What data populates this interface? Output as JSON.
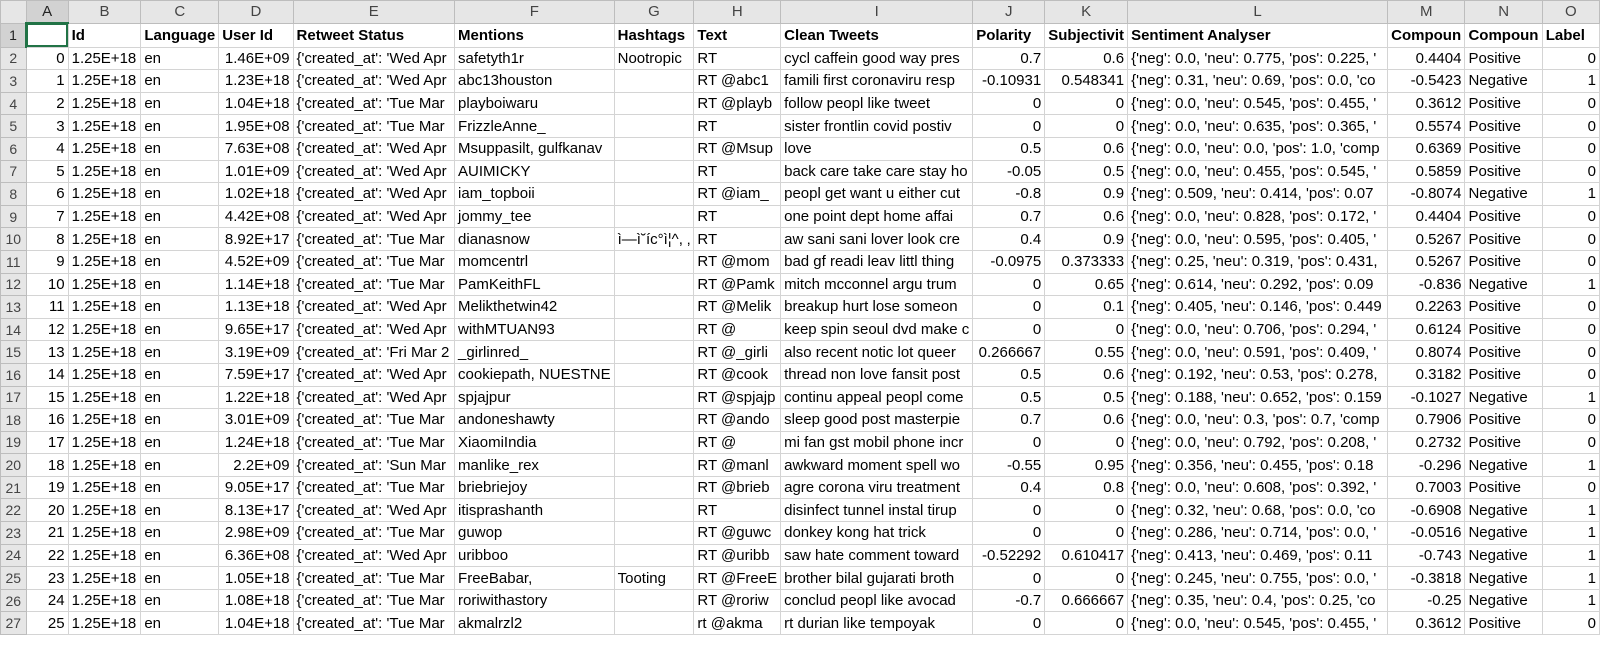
{
  "sheet": {
    "columns": [
      "A",
      "B",
      "C",
      "D",
      "E",
      "F",
      "G",
      "H",
      "I",
      "J",
      "K",
      "L",
      "M",
      "N",
      "O"
    ],
    "selected_cell": "A1",
    "headers": [
      "",
      "Id",
      "Language",
      "User Id",
      "Retweet Status",
      "Mentions",
      "Hashtags",
      "Text",
      "Clean Tweets",
      "Polarity",
      "Subjectivit",
      "Sentiment Analyser",
      "Compoun",
      "Compoun",
      "Label"
    ],
    "rows": [
      [
        "0",
        "1.25E+18",
        "en",
        "1.46E+09",
        "{'created_at': 'Wed Apr",
        "safetyth1r",
        "Nootropic",
        "RT",
        "cycl caffein good way pres",
        "0.7",
        "0.6",
        "{'neg': 0.0, 'neu': 0.775, 'pos': 0.225, '",
        "0.4404",
        "Positive",
        "0"
      ],
      [
        "1",
        "1.25E+18",
        "en",
        "1.23E+18",
        "{'created_at': 'Wed Apr",
        "abc13houston",
        "",
        "RT @abc1",
        "famili first coronaviru resp",
        "-0.10931",
        "0.548341",
        "{'neg': 0.31, 'neu': 0.69, 'pos': 0.0, 'co",
        "-0.5423",
        "Negative",
        "1"
      ],
      [
        "2",
        "1.25E+18",
        "en",
        "1.04E+18",
        "{'created_at': 'Tue Mar",
        "playboiwaru",
        "",
        "RT @playb",
        "follow peopl like tweet",
        "0",
        "0",
        "{'neg': 0.0, 'neu': 0.545, 'pos': 0.455, '",
        "0.3612",
        "Positive",
        "0"
      ],
      [
        "3",
        "1.25E+18",
        "en",
        "1.95E+08",
        "{'created_at': 'Tue Mar",
        "FrizzleAnne_",
        "",
        "RT",
        "sister frontlin covid postiv",
        "0",
        "0",
        "{'neg': 0.0, 'neu': 0.635, 'pos': 0.365, '",
        "0.5574",
        "Positive",
        "0"
      ],
      [
        "4",
        "1.25E+18",
        "en",
        "7.63E+08",
        "{'created_at': 'Wed Apr",
        "Msuppasilt, gulfkanav",
        "",
        "RT @Msup",
        "love",
        "0.5",
        "0.6",
        "{'neg': 0.0, 'neu': 0.0, 'pos': 1.0, 'comp",
        "0.6369",
        "Positive",
        "0"
      ],
      [
        "5",
        "1.25E+18",
        "en",
        "1.01E+09",
        "{'created_at': 'Wed Apr",
        "AUIMICKY",
        "",
        "RT",
        "back care take care stay ho",
        "-0.05",
        "0.5",
        "{'neg': 0.0, 'neu': 0.455, 'pos': 0.545, '",
        "0.5859",
        "Positive",
        "0"
      ],
      [
        "6",
        "1.25E+18",
        "en",
        "1.02E+18",
        "{'created_at': 'Wed Apr",
        "iam_topboii",
        "",
        "RT @iam_",
        "peopl get want u either cut",
        "-0.8",
        "0.9",
        "{'neg': 0.509, 'neu': 0.414, 'pos': 0.07",
        "-0.8074",
        "Negative",
        "1"
      ],
      [
        "7",
        "1.25E+18",
        "en",
        "4.42E+08",
        "{'created_at': 'Wed Apr",
        "jommy_tee",
        "",
        "RT",
        "one point dept home affai",
        "0.7",
        "0.6",
        "{'neg': 0.0, 'neu': 0.828, 'pos': 0.172, '",
        "0.4404",
        "Positive",
        "0"
      ],
      [
        "8",
        "1.25E+18",
        "en",
        "8.92E+17",
        "{'created_at': 'Tue Mar",
        "dianasnow",
        "ì—ì˘íc°ì¦^, ‚",
        "RT",
        "aw sani sani lover look cre",
        "0.4",
        "0.9",
        "{'neg': 0.0, 'neu': 0.595, 'pos': 0.405, '",
        "0.5267",
        "Positive",
        "0"
      ],
      [
        "9",
        "1.25E+18",
        "en",
        "4.52E+09",
        "{'created_at': 'Tue Mar",
        "momcentrl",
        "",
        "RT @mom",
        "bad gf readi leav littl thing",
        "-0.0975",
        "0.373333",
        "{'neg': 0.25, 'neu': 0.319, 'pos': 0.431,",
        "0.5267",
        "Positive",
        "0"
      ],
      [
        "10",
        "1.25E+18",
        "en",
        "1.14E+18",
        "{'created_at': 'Tue Mar",
        "PamKeithFL",
        "",
        "RT @Pamk",
        "mitch mcconnel argu trum",
        "0",
        "0.65",
        "{'neg': 0.614, 'neu': 0.292, 'pos': 0.09",
        "-0.836",
        "Negative",
        "1"
      ],
      [
        "11",
        "1.25E+18",
        "en",
        "1.13E+18",
        "{'created_at': 'Wed Apr",
        "Melikthetwin42",
        "",
        "RT @Melik",
        "breakup hurt lose someon",
        "0",
        "0.1",
        "{'neg': 0.405, 'neu': 0.146, 'pos': 0.449",
        "0.2263",
        "Positive",
        "0"
      ],
      [
        "12",
        "1.25E+18",
        "en",
        "9.65E+17",
        "{'created_at': 'Wed Apr",
        "withMTUAN93",
        "",
        "RT @",
        "keep spin seoul dvd make c",
        "0",
        "0",
        "{'neg': 0.0, 'neu': 0.706, 'pos': 0.294, '",
        "0.6124",
        "Positive",
        "0"
      ],
      [
        "13",
        "1.25E+18",
        "en",
        "3.19E+09",
        "{'created_at': 'Fri Mar 2",
        "_girlinred_",
        "",
        "RT @_girli",
        "also recent notic lot queer",
        "0.266667",
        "0.55",
        "{'neg': 0.0, 'neu': 0.591, 'pos': 0.409, '",
        "0.8074",
        "Positive",
        "0"
      ],
      [
        "14",
        "1.25E+18",
        "en",
        "7.59E+17",
        "{'created_at': 'Wed Apr",
        "cookiepath, NUESTNE",
        "",
        "RT @cook",
        "thread non love fansit post",
        "0.5",
        "0.6",
        "{'neg': 0.192, 'neu': 0.53, 'pos': 0.278,",
        "0.3182",
        "Positive",
        "0"
      ],
      [
        "15",
        "1.25E+18",
        "en",
        "1.22E+18",
        "{'created_at': 'Wed Apr",
        "spjajpur",
        "",
        "RT @spjajp",
        "continu appeal peopl come",
        "0.5",
        "0.5",
        "{'neg': 0.188, 'neu': 0.652, 'pos': 0.159",
        "-0.1027",
        "Negative",
        "1"
      ],
      [
        "16",
        "1.25E+18",
        "en",
        "3.01E+09",
        "{'created_at': 'Tue Mar",
        "andoneshawty",
        "",
        "RT @ando",
        "sleep good post masterpie",
        "0.7",
        "0.6",
        "{'neg': 0.0, 'neu': 0.3, 'pos': 0.7, 'comp",
        "0.7906",
        "Positive",
        "0"
      ],
      [
        "17",
        "1.25E+18",
        "en",
        "1.24E+18",
        "{'created_at': 'Tue Mar",
        "XiaomiIndia",
        "",
        "RT @",
        "mi fan gst mobil phone incr",
        "0",
        "0",
        "{'neg': 0.0, 'neu': 0.792, 'pos': 0.208, '",
        "0.2732",
        "Positive",
        "0"
      ],
      [
        "18",
        "1.25E+18",
        "en",
        "2.2E+09",
        "{'created_at': 'Sun Mar",
        "manlike_rex",
        "",
        "RT @manl",
        "awkward moment spell wo",
        "-0.55",
        "0.95",
        "{'neg': 0.356, 'neu': 0.455, 'pos': 0.18",
        "-0.296",
        "Negative",
        "1"
      ],
      [
        "19",
        "1.25E+18",
        "en",
        "9.05E+17",
        "{'created_at': 'Tue Mar",
        "briebriejoy",
        "",
        "RT @brieb",
        "agre corona viru treatment",
        "0.4",
        "0.8",
        "{'neg': 0.0, 'neu': 0.608, 'pos': 0.392, '",
        "0.7003",
        "Positive",
        "0"
      ],
      [
        "20",
        "1.25E+18",
        "en",
        "8.13E+17",
        "{'created_at': 'Wed Apr",
        "itisprashanth",
        "",
        "RT",
        "disinfect tunnel instal tirup",
        "0",
        "0",
        "{'neg': 0.32, 'neu': 0.68, 'pos': 0.0, 'co",
        "-0.6908",
        "Negative",
        "1"
      ],
      [
        "21",
        "1.25E+18",
        "en",
        "2.98E+09",
        "{'created_at': 'Tue Mar",
        "guwop",
        "",
        "RT @guwc",
        "donkey kong hat trick",
        "0",
        "0",
        "{'neg': 0.286, 'neu': 0.714, 'pos': 0.0, '",
        "-0.0516",
        "Negative",
        "1"
      ],
      [
        "22",
        "1.25E+18",
        "en",
        "6.36E+08",
        "{'created_at': 'Wed Apr",
        "uribboo",
        "",
        "RT @uribb",
        "saw hate comment toward",
        "-0.52292",
        "0.610417",
        "{'neg': 0.413, 'neu': 0.469, 'pos': 0.11",
        "-0.743",
        "Negative",
        "1"
      ],
      [
        "23",
        "1.25E+18",
        "en",
        "1.05E+18",
        "{'created_at': 'Tue Mar",
        "FreeBabar,",
        "Tooting",
        "RT @FreeE",
        "brother bilal gujarati broth",
        "0",
        "0",
        "{'neg': 0.245, 'neu': 0.755, 'pos': 0.0, '",
        "-0.3818",
        "Negative",
        "1"
      ],
      [
        "24",
        "1.25E+18",
        "en",
        "1.08E+18",
        "{'created_at': 'Tue Mar",
        "roriwithastory",
        "",
        "RT @roriw",
        "conclud peopl like avocad",
        "-0.7",
        "0.666667",
        "{'neg': 0.35, 'neu': 0.4, 'pos': 0.25, 'co",
        "-0.25",
        "Negative",
        "1"
      ],
      [
        "25",
        "1.25E+18",
        "en",
        "1.04E+18",
        "{'created_at': 'Tue Mar",
        "akmalrzl2",
        "",
        "rt @akma",
        "rt durian like tempoyak",
        "0",
        "0",
        "{'neg': 0.0, 'neu': 0.545, 'pos': 0.455, '",
        "0.3612",
        "Positive",
        "0"
      ]
    ]
  }
}
